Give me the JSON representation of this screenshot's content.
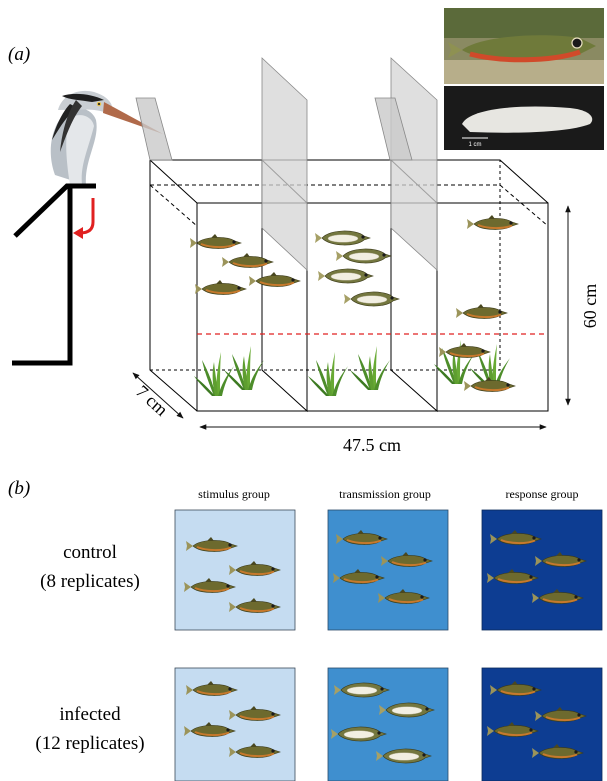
{
  "panel_a": {
    "label": "(a)",
    "dim_height": "60 cm",
    "dim_depth": "7 cm",
    "dim_width": "47.5 cm",
    "photo_scale": "1 cm"
  },
  "panel_b": {
    "label": "(b)",
    "columns": [
      "stimulus group",
      "transmission group",
      "response group"
    ],
    "rows": [
      {
        "line1": "control",
        "line2": "(8 replicates)"
      },
      {
        "line1": "infected",
        "line2": "(12 replicates)"
      }
    ],
    "colors": {
      "stimulus": "#c5dcf1",
      "transmission": "#3f8fcf",
      "response": "#0d3d92"
    }
  }
}
